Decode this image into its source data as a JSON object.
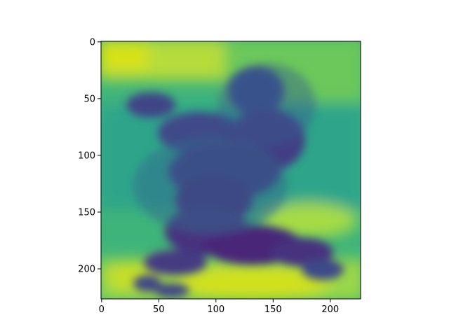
{
  "chart_data": {
    "type": "heatmap",
    "title": "",
    "xlabel": "",
    "ylabel": "",
    "colormap": "viridis",
    "image_size": [
      227,
      227
    ],
    "xlim": [
      -0.5,
      226.5
    ],
    "ylim": [
      226.5,
      -0.5
    ],
    "xticks": [
      0,
      50,
      100,
      150,
      200
    ],
    "xtick_labels": [
      "0",
      "50",
      "100",
      "150",
      "200"
    ],
    "yticks": [
      0,
      50,
      100,
      150,
      200
    ],
    "ytick_labels": [
      "0",
      "50",
      "100",
      "150",
      "200"
    ],
    "grid": false,
    "colors": {
      "low": "#472c7a",
      "mid": "#2a9d8f",
      "high": "#d8e219"
    }
  }
}
